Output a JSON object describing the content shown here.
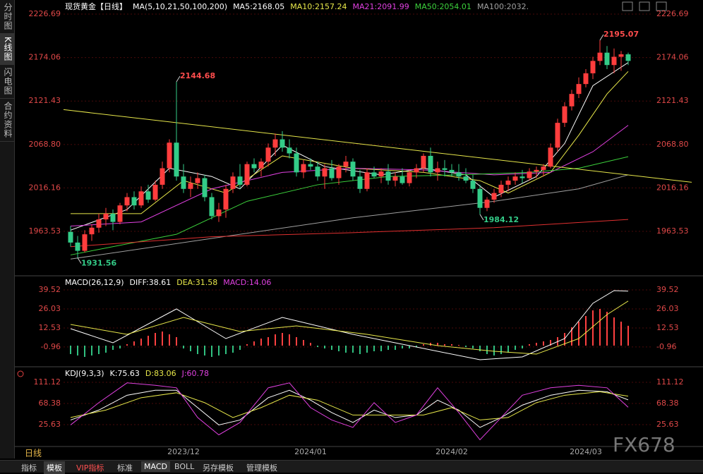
{
  "sidebar": {
    "tabs": [
      "分时图",
      "K线图",
      "闪电图",
      "合约资料"
    ]
  },
  "chart_data": [
    {
      "type": "candlestick",
      "title": "现货黄金【日线】",
      "subtitle": "MA(5,10,21,50,100,200)",
      "categories": [
        null,
        null,
        null,
        null,
        null,
        null,
        null,
        null,
        null,
        null,
        null,
        null,
        null,
        null,
        null,
        null,
        "2023/12",
        null,
        null,
        null,
        null,
        null,
        null,
        null,
        null,
        null,
        null,
        null,
        null,
        null,
        null,
        null,
        null,
        null,
        "2024/01",
        null,
        null,
        null,
        null,
        null,
        null,
        null,
        null,
        null,
        null,
        null,
        null,
        null,
        null,
        null,
        null,
        null,
        null,
        null,
        "2024/02",
        null,
        null,
        null,
        null,
        null,
        null,
        null,
        null,
        null,
        null,
        null,
        null,
        null,
        null,
        null,
        null,
        null,
        null,
        "2024/03",
        null,
        null,
        null,
        null,
        null,
        null
      ],
      "open": [
        1963,
        1950,
        1940,
        1960,
        1968,
        1978,
        1985,
        1975,
        1995,
        2005,
        1995,
        2012,
        2002,
        2020,
        2040,
        2071,
        2030,
        2015,
        2022,
        2028,
        2005,
        1982,
        1990,
        2015,
        2030,
        2020,
        2045,
        2040,
        2048,
        2065,
        2075,
        2065,
        2058,
        2035,
        2045,
        2042,
        2030,
        2040,
        2028,
        2042,
        2048,
        2030,
        2015,
        2035,
        2030,
        2036,
        2025,
        2030,
        2022,
        2035,
        2040,
        2055,
        2035,
        2040,
        2038,
        2035,
        2030,
        2025,
        2015,
        1992,
        2002,
        2010,
        2020,
        2025,
        2030,
        2028,
        2036,
        2038,
        2042,
        2065,
        2095,
        2115,
        2130,
        2142,
        2155,
        2170,
        2180,
        2165,
        2175,
        2178
      ],
      "high": [
        1970,
        1958,
        1965,
        1972,
        1985,
        1992,
        1990,
        1998,
        2010,
        2012,
        2018,
        2020,
        2025,
        2048,
        2075,
        2144.68,
        2045,
        2030,
        2035,
        2032,
        2010,
        1998,
        2020,
        2035,
        2045,
        2048,
        2052,
        2052,
        2070,
        2082,
        2085,
        2075,
        2065,
        2050,
        2052,
        2048,
        2045,
        2050,
        2045,
        2055,
        2052,
        2038,
        2040,
        2042,
        2040,
        2045,
        2035,
        2040,
        2038,
        2045,
        2058,
        2065,
        2048,
        2050,
        2045,
        2045,
        2040,
        2032,
        2020,
        2005,
        2015,
        2025,
        2030,
        2035,
        2038,
        2040,
        2042,
        2045,
        2070,
        2100,
        2120,
        2135,
        2150,
        2160,
        2175,
        2195.07,
        2188,
        2185,
        2182,
        2180
      ],
      "low": [
        1945,
        1931.56,
        1938,
        1952,
        1962,
        1970,
        1965,
        1972,
        1988,
        1990,
        1992,
        1998,
        2000,
        2015,
        2035,
        2025,
        2010,
        2005,
        2015,
        2000,
        1978,
        1975,
        1980,
        2010,
        2015,
        2018,
        2035,
        2030,
        2042,
        2055,
        2060,
        2052,
        2030,
        2028,
        2038,
        2025,
        2015,
        2025,
        2020,
        2035,
        2025,
        2010,
        2012,
        2028,
        2022,
        2020,
        2018,
        2020,
        2018,
        2028,
        2035,
        2030,
        2025,
        2030,
        2030,
        2025,
        2022,
        2010,
        1984.12,
        1988,
        1998,
        2005,
        2012,
        2020,
        2022,
        2025,
        2028,
        2030,
        2040,
        2060,
        2090,
        2110,
        2125,
        2138,
        2148,
        2165,
        2160,
        2155,
        2158,
        2165
      ],
      "close": [
        1950,
        1940,
        1960,
        1968,
        1978,
        1985,
        1975,
        1995,
        2005,
        1995,
        2012,
        2002,
        2020,
        2040,
        2071,
        2030,
        2015,
        2022,
        2028,
        2005,
        1982,
        1990,
        2015,
        2030,
        2020,
        2045,
        2040,
        2048,
        2065,
        2075,
        2065,
        2058,
        2035,
        2045,
        2042,
        2030,
        2040,
        2028,
        2042,
        2048,
        2030,
        2015,
        2035,
        2030,
        2036,
        2025,
        2030,
        2022,
        2035,
        2040,
        2055,
        2035,
        2040,
        2038,
        2035,
        2030,
        2025,
        2015,
        1992,
        2002,
        2010,
        2020,
        2025,
        2030,
        2028,
        2036,
        2038,
        2042,
        2065,
        2095,
        2115,
        2130,
        2142,
        2155,
        2170,
        2180,
        2165,
        2175,
        2178,
        2170
      ],
      "up_color": "#ff3d3d",
      "down_color": "#33cc88",
      "ylim": [
        1912.3,
        2238.65
      ],
      "yticks": [
        2226.69,
        2174.06,
        2121.43,
        {
          "value": 2068.8,
          "label": "2068.80"
        },
        2016.16,
        1963.53
      ],
      "series": [
        {
          "name": "MA5:2168.05",
          "color": "#ffffff",
          "x": [
            0,
            8,
            14,
            20,
            24,
            30,
            36,
            44,
            50,
            56,
            60,
            66,
            70,
            74,
            79
          ],
          "values": [
            1965,
            1990,
            2040,
            2030,
            2015,
            2068,
            2042,
            2032,
            2040,
            2032,
            2005,
            2030,
            2070,
            2140,
            2168.05
          ]
        },
        {
          "name": "MA10:2157.24",
          "color": "#e8e84a",
          "x": [
            0,
            10,
            16,
            22,
            30,
            40,
            50,
            58,
            62,
            68,
            72,
            76,
            79
          ],
          "values": [
            1985,
            1985,
            2025,
            2010,
            2055,
            2040,
            2035,
            2025,
            2010,
            2035,
            2080,
            2130,
            2157.24
          ]
        },
        {
          "name": "MA21:2091.99",
          "color": "#e040e0",
          "x": [
            0,
            10,
            20,
            30,
            40,
            50,
            60,
            68,
            74,
            79
          ],
          "values": [
            1970,
            1975,
            2015,
            2035,
            2040,
            2038,
            2032,
            2035,
            2060,
            2091.99
          ]
        },
        {
          "name": "MA50:2054.01",
          "color": "#3cd23c",
          "x": [
            0,
            15,
            25,
            35,
            45,
            55,
            65,
            72,
            79
          ],
          "values": [
            1935,
            1960,
            2000,
            2020,
            2030,
            2032,
            2035,
            2040,
            2054.01
          ]
        },
        {
          "name": "MA100:2032.",
          "color": "#a0a0a0",
          "x": [
            0,
            20,
            40,
            60,
            72,
            79
          ],
          "values": [
            1930,
            1955,
            1980,
            2000,
            2015,
            2032
          ]
        },
        {
          "color": "#e03030",
          "x": [
            0,
            20,
            40,
            60,
            79
          ],
          "values": [
            1945,
            1957,
            1962,
            1968,
            1978
          ]
        }
      ],
      "trend_line": {
        "color": "#e6e64a",
        "x": [
          -1,
          88
        ],
        "values": [
          2111,
          2023
        ]
      },
      "annotations": [
        {
          "x": 15,
          "value": 2144.68,
          "color": "#ff4d4d"
        },
        {
          "x": 75,
          "value": 2195.07,
          "color": "#ff4d4d"
        },
        {
          "x": 58,
          "value": 1984.12,
          "color": "#33cc88"
        },
        {
          "x": 1,
          "value": 1931.56,
          "color": "#33cc88"
        }
      ]
    },
    {
      "type": "macd",
      "title": "MACD(26,12,9)",
      "ylim": [
        -14,
        47.5
      ],
      "yticks": [
        39.52,
        26.03,
        12.53,
        -0.96
      ],
      "histogram": {
        "name": "MACD:14.06",
        "color": "#e040e0",
        "up_color": "#ff4040",
        "down_color": "#30c080",
        "values": [
          -6,
          -7,
          -8,
          -7,
          -6,
          -5,
          -3,
          -2,
          1,
          3,
          5,
          7,
          9,
          10,
          8,
          6,
          -2,
          -4,
          -6,
          -7,
          -8,
          -7,
          -6,
          -5,
          -3,
          1,
          3,
          5,
          6,
          8,
          9,
          8,
          6,
          4,
          2,
          -1,
          -2,
          -3,
          -4,
          -5,
          -5,
          -6,
          -5,
          -4,
          -4,
          -3,
          -3,
          -2,
          -2,
          -1,
          1,
          2,
          2,
          1,
          1,
          0.5,
          -1,
          -2,
          -4,
          -6,
          -7,
          -6,
          -5,
          -3,
          -2,
          1,
          2,
          3,
          4,
          6,
          9,
          13,
          17,
          21,
          25,
          26,
          24,
          20,
          17,
          14.06
        ]
      },
      "series": [
        {
          "name": "DIFF:38.61",
          "color": "#ffffff",
          "x": [
            0,
            6,
            15,
            22,
            30,
            40,
            50,
            58,
            64,
            70,
            74,
            77,
            79
          ],
          "values": [
            12,
            2,
            26,
            5,
            20,
            8,
            -2,
            -10,
            -8,
            5,
            30,
            39,
            38.61
          ]
        },
        {
          "name": "DEA:31.58",
          "color": "#e8e84a",
          "x": [
            0,
            8,
            16,
            24,
            32,
            42,
            52,
            60,
            66,
            72,
            76,
            79
          ],
          "values": [
            15,
            8,
            20,
            10,
            14,
            8,
            0,
            -4,
            -6,
            5,
            22,
            31.58
          ]
        }
      ]
    },
    {
      "type": "line",
      "title": "KDJ(9,3,3)",
      "ylim": [
        -17.1,
        139.6
      ],
      "yticks": [
        111.12,
        68.38,
        25.63
      ],
      "series": [
        {
          "name": "K:75.63",
          "color": "#ffffff",
          "x": [
            0,
            4,
            8,
            12,
            15,
            18,
            21,
            24,
            28,
            31,
            34,
            37,
            40,
            43,
            46,
            49,
            52,
            55,
            58,
            61,
            64,
            68,
            72,
            76,
            79
          ],
          "values": [
            35,
            55,
            85,
            95,
            95,
            60,
            25,
            35,
            80,
            95,
            75,
            50,
            30,
            55,
            40,
            45,
            75,
            55,
            20,
            40,
            65,
            85,
            95,
            92,
            75.63
          ]
        },
        {
          "name": "D:83.06",
          "color": "#e8e84a",
          "x": [
            0,
            5,
            10,
            15,
            19,
            23,
            27,
            31,
            35,
            40,
            45,
            50,
            54,
            58,
            62,
            66,
            70,
            75,
            79
          ],
          "values": [
            40,
            55,
            80,
            90,
            70,
            40,
            60,
            85,
            75,
            45,
            45,
            45,
            60,
            35,
            40,
            70,
            85,
            92,
            83.06
          ]
        },
        {
          "name": "J:60.78",
          "color": "#e040e0",
          "x": [
            0,
            4,
            8,
            12,
            15,
            18,
            21,
            24,
            28,
            31,
            34,
            37,
            40,
            43,
            46,
            49,
            52,
            55,
            58,
            61,
            64,
            68,
            72,
            76,
            79
          ],
          "values": [
            25,
            70,
            110,
            105,
            100,
            40,
            5,
            30,
            100,
            110,
            60,
            35,
            20,
            70,
            30,
            45,
            100,
            50,
            -5,
            40,
            85,
            100,
            105,
            100,
            60.78
          ]
        }
      ]
    }
  ],
  "footer": {
    "period": "日线",
    "tabs": [
      "指标",
      "模板",
      "VIP指标",
      "标准",
      "MACD",
      "BOLL",
      "另存模板",
      "管理模板"
    ]
  },
  "watermark": "FX678"
}
